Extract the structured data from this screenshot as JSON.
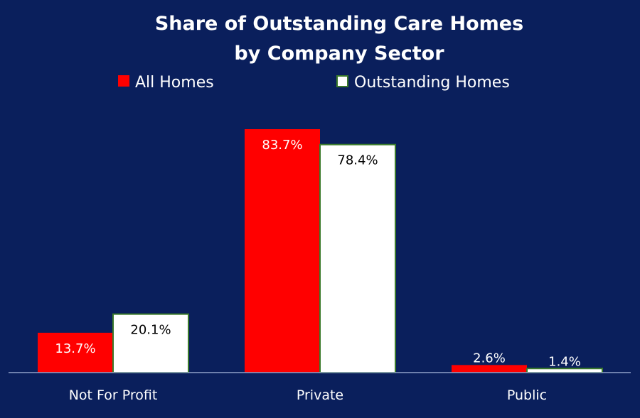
{
  "chart_data": {
    "type": "bar",
    "title": [
      "Share of Outstanding Care Homes",
      "by Company Sector"
    ],
    "categories": [
      "Not For Profit",
      "Private",
      "Public"
    ],
    "series": [
      {
        "name": "All Homes",
        "values": [
          13.7,
          83.7,
          2.6
        ],
        "labels": [
          "13.7%",
          "83.7%",
          "2.6%"
        ],
        "color": "#ff0000",
        "label_color": "#ffffff"
      },
      {
        "name": "Outstanding Homes",
        "values": [
          20.1,
          78.4,
          1.4
        ],
        "labels": [
          "20.1%",
          "78.4%",
          "1.4%"
        ],
        "color": "#ffffff",
        "border_color": "#3a7a2a",
        "label_color": "#000000"
      }
    ],
    "ylim": [
      0,
      100
    ],
    "grid": false,
    "legend": "top-center",
    "colors": {
      "background": "#0a1f5c",
      "axis": "#8fa0c8"
    }
  }
}
